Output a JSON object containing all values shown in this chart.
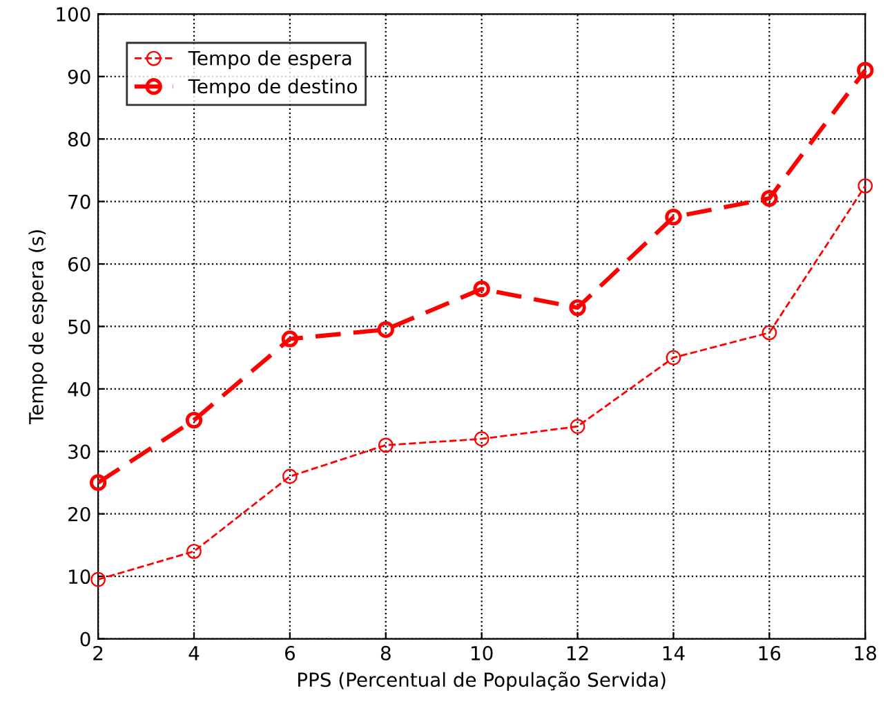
{
  "chart_data": {
    "type": "line",
    "xlabel": "PPS (Percentual de População Servida)",
    "ylabel": "Tempo de espera (s)",
    "x": [
      2,
      4,
      6,
      8,
      10,
      12,
      14,
      16,
      18
    ],
    "series": [
      {
        "name": "Tempo de espera",
        "color": "#ff0000",
        "values": [
          9.5,
          14,
          26,
          31,
          32,
          34,
          45,
          49,
          72.5
        ]
      },
      {
        "name": "Tempo de destino",
        "color": "#ff0000",
        "values": [
          25,
          35,
          48,
          49.5,
          56,
          53,
          67.5,
          70.5,
          91
        ]
      }
    ],
    "xlim": [
      2,
      18
    ],
    "xticks": [
      2,
      4,
      6,
      8,
      10,
      12,
      14,
      16,
      18
    ],
    "ylim": [
      0,
      100
    ],
    "yticks": [
      0,
      10,
      20,
      30,
      40,
      50,
      60,
      70,
      80,
      90,
      100
    ],
    "grid": true,
    "legend": "top left",
    "marker": "circle",
    "line_style": "dashed"
  }
}
